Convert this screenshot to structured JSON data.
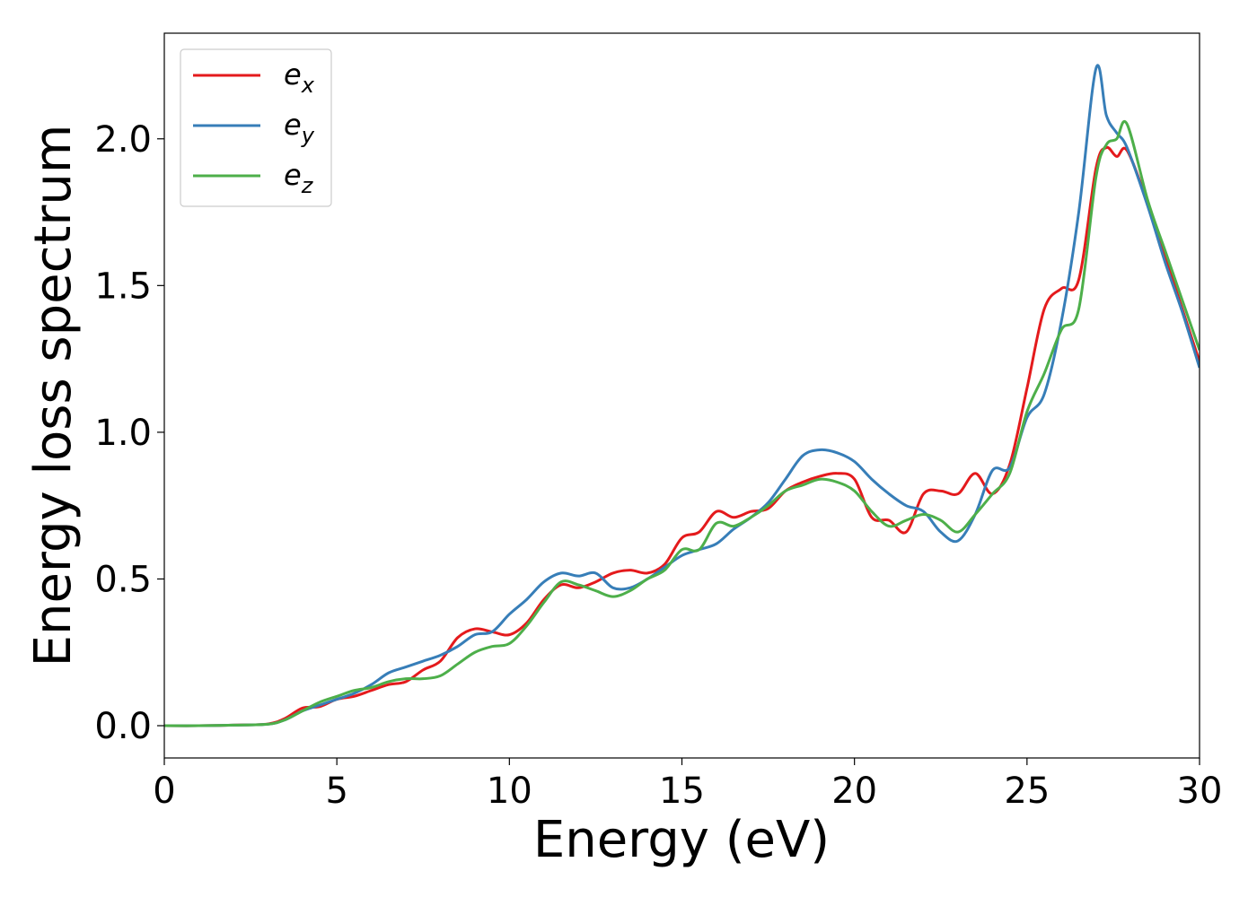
{
  "chart_data": {
    "type": "line",
    "title": "",
    "xlabel": "Energy (eV)",
    "ylabel": "Energy loss spectrum",
    "xlim": [
      0,
      30
    ],
    "ylim": [
      -0.11,
      2.36
    ],
    "xticks": [
      0,
      5,
      10,
      15,
      20,
      25,
      30
    ],
    "xtick_labels": [
      "0",
      "5",
      "10",
      "15",
      "20",
      "25",
      "30"
    ],
    "yticks": [
      0.0,
      0.5,
      1.0,
      1.5,
      2.0
    ],
    "ytick_labels": [
      "0.0",
      "0.5",
      "1.0",
      "1.5",
      "2.0"
    ],
    "grid": false,
    "legend_position": "top-left",
    "series": [
      {
        "name": "e",
        "subscript": "x",
        "color": "#e41a1c",
        "x": [
          0,
          1,
          2,
          3,
          3.5,
          4,
          4.5,
          5,
          5.5,
          6,
          6.5,
          7,
          7.5,
          8,
          8.5,
          9,
          9.5,
          10,
          10.5,
          11,
          11.5,
          12,
          12.5,
          13,
          13.5,
          14,
          14.5,
          15,
          15.5,
          16,
          16.5,
          17,
          17.5,
          18,
          18.5,
          19,
          19.5,
          20,
          20.5,
          21,
          21.5,
          22,
          22.5,
          23,
          23.5,
          24,
          24.5,
          25,
          25.5,
          26,
          26.5,
          27,
          27.3,
          27.6,
          27.9,
          28.5,
          29,
          29.5,
          30
        ],
        "y": [
          0.0,
          0.0,
          0.002,
          0.006,
          0.025,
          0.06,
          0.065,
          0.09,
          0.1,
          0.12,
          0.14,
          0.15,
          0.19,
          0.22,
          0.3,
          0.33,
          0.32,
          0.31,
          0.35,
          0.43,
          0.48,
          0.47,
          0.49,
          0.52,
          0.53,
          0.52,
          0.55,
          0.64,
          0.66,
          0.73,
          0.71,
          0.73,
          0.74,
          0.8,
          0.83,
          0.85,
          0.86,
          0.84,
          0.71,
          0.7,
          0.66,
          0.79,
          0.8,
          0.79,
          0.86,
          0.79,
          0.89,
          1.15,
          1.42,
          1.49,
          1.52,
          1.9,
          1.97,
          1.94,
          1.96,
          1.78,
          1.6,
          1.42,
          1.24
        ]
      },
      {
        "name": "e",
        "subscript": "y",
        "color": "#377eb8",
        "x": [
          0,
          1,
          2,
          3,
          3.5,
          4,
          4.5,
          5,
          5.5,
          6,
          6.5,
          7,
          7.5,
          8,
          8.5,
          9,
          9.5,
          10,
          10.5,
          11,
          11.5,
          12,
          12.5,
          13,
          13.5,
          14,
          14.5,
          15,
          15.5,
          16,
          16.5,
          17,
          17.5,
          18,
          18.5,
          19,
          19.5,
          20,
          20.5,
          21,
          21.5,
          22,
          22.5,
          23,
          23.5,
          24,
          24.5,
          25,
          25.5,
          26,
          26.5,
          27,
          27.3,
          27.6,
          27.9,
          28.5,
          29,
          29.5,
          30
        ],
        "y": [
          0.0,
          0.0,
          0.002,
          0.005,
          0.02,
          0.05,
          0.07,
          0.09,
          0.11,
          0.14,
          0.18,
          0.2,
          0.22,
          0.24,
          0.27,
          0.31,
          0.32,
          0.38,
          0.43,
          0.49,
          0.52,
          0.51,
          0.52,
          0.47,
          0.47,
          0.5,
          0.54,
          0.58,
          0.6,
          0.62,
          0.67,
          0.71,
          0.76,
          0.84,
          0.92,
          0.94,
          0.93,
          0.9,
          0.84,
          0.79,
          0.75,
          0.73,
          0.66,
          0.63,
          0.72,
          0.87,
          0.88,
          1.05,
          1.13,
          1.38,
          1.75,
          2.24,
          2.08,
          2.02,
          1.97,
          1.77,
          1.58,
          1.41,
          1.22
        ]
      },
      {
        "name": "e",
        "subscript": "z",
        "color": "#4daf4a",
        "x": [
          0,
          1,
          2,
          3,
          3.5,
          4,
          4.5,
          5,
          5.5,
          6,
          6.5,
          7,
          7.5,
          8,
          8.5,
          9,
          9.5,
          10,
          10.5,
          11,
          11.5,
          12,
          12.5,
          13,
          13.5,
          14,
          14.5,
          15,
          15.5,
          16,
          16.5,
          17,
          17.5,
          18,
          18.5,
          19,
          19.5,
          20,
          20.5,
          21,
          21.5,
          22,
          22.5,
          23,
          23.5,
          24,
          24.5,
          25,
          25.5,
          26,
          26.5,
          27,
          27.3,
          27.6,
          27.9,
          28.5,
          29,
          29.5,
          30
        ],
        "y": [
          0.0,
          0.0,
          0.002,
          0.005,
          0.02,
          0.05,
          0.08,
          0.1,
          0.12,
          0.13,
          0.15,
          0.16,
          0.16,
          0.17,
          0.21,
          0.25,
          0.27,
          0.28,
          0.34,
          0.42,
          0.49,
          0.48,
          0.46,
          0.44,
          0.46,
          0.5,
          0.53,
          0.6,
          0.6,
          0.69,
          0.68,
          0.71,
          0.75,
          0.8,
          0.82,
          0.84,
          0.83,
          0.8,
          0.73,
          0.68,
          0.7,
          0.72,
          0.7,
          0.66,
          0.72,
          0.79,
          0.86,
          1.07,
          1.2,
          1.35,
          1.42,
          1.87,
          1.98,
          2.0,
          2.05,
          1.79,
          1.62,
          1.45,
          1.28
        ]
      }
    ]
  }
}
